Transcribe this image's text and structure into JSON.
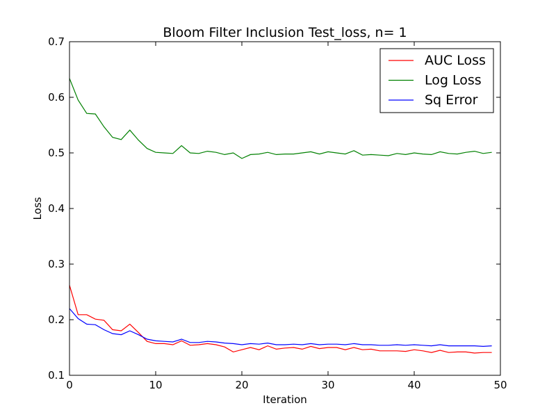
{
  "chart_data": {
    "type": "line",
    "title": "Bloom Filter Inclusion Test_loss, n= 1",
    "xlabel": "Iteration",
    "ylabel": "Loss",
    "xlim": [
      0,
      50
    ],
    "ylim": [
      0.1,
      0.7
    ],
    "xticks": [
      "0",
      "10",
      "20",
      "30",
      "40",
      "50"
    ],
    "yticks": [
      "0.1",
      "0.2",
      "0.3",
      "0.4",
      "0.5",
      "0.6",
      "0.7"
    ],
    "grid": false,
    "legend_position": "top-right",
    "x": [
      0,
      1,
      2,
      3,
      4,
      5,
      6,
      7,
      8,
      9,
      10,
      11,
      12,
      13,
      14,
      15,
      16,
      17,
      18,
      19,
      20,
      21,
      22,
      23,
      24,
      25,
      26,
      27,
      28,
      29,
      30,
      31,
      32,
      33,
      34,
      35,
      36,
      37,
      38,
      39,
      40,
      41,
      42,
      43,
      44,
      45,
      46,
      47,
      48,
      49
    ],
    "series": [
      {
        "name": "AUC Loss",
        "color": "#ff0000",
        "values": [
          0.262,
          0.209,
          0.209,
          0.201,
          0.199,
          0.182,
          0.18,
          0.192,
          0.177,
          0.161,
          0.157,
          0.157,
          0.155,
          0.162,
          0.154,
          0.155,
          0.157,
          0.155,
          0.151,
          0.142,
          0.146,
          0.15,
          0.146,
          0.153,
          0.147,
          0.149,
          0.15,
          0.147,
          0.152,
          0.148,
          0.15,
          0.15,
          0.146,
          0.15,
          0.146,
          0.147,
          0.144,
          0.144,
          0.144,
          0.143,
          0.146,
          0.144,
          0.141,
          0.145,
          0.141,
          0.142,
          0.142,
          0.14,
          0.141,
          0.141
        ]
      },
      {
        "name": "Log Loss",
        "color": "#008000",
        "values": [
          0.634,
          0.595,
          0.571,
          0.57,
          0.547,
          0.528,
          0.524,
          0.541,
          0.523,
          0.508,
          0.501,
          0.5,
          0.499,
          0.513,
          0.5,
          0.499,
          0.503,
          0.501,
          0.497,
          0.5,
          0.49,
          0.497,
          0.498,
          0.501,
          0.497,
          0.498,
          0.498,
          0.5,
          0.502,
          0.498,
          0.502,
          0.5,
          0.498,
          0.504,
          0.496,
          0.497,
          0.496,
          0.495,
          0.499,
          0.497,
          0.5,
          0.498,
          0.497,
          0.502,
          0.499,
          0.498,
          0.501,
          0.503,
          0.499,
          0.501
        ]
      },
      {
        "name": "Sq Error",
        "color": "#0000ff",
        "values": [
          0.22,
          0.202,
          0.192,
          0.191,
          0.182,
          0.175,
          0.173,
          0.18,
          0.173,
          0.165,
          0.162,
          0.161,
          0.16,
          0.165,
          0.159,
          0.159,
          0.161,
          0.16,
          0.158,
          0.157,
          0.155,
          0.157,
          0.156,
          0.158,
          0.155,
          0.155,
          0.156,
          0.155,
          0.157,
          0.155,
          0.156,
          0.156,
          0.155,
          0.157,
          0.155,
          0.155,
          0.154,
          0.154,
          0.155,
          0.154,
          0.155,
          0.154,
          0.153,
          0.155,
          0.153,
          0.153,
          0.153,
          0.153,
          0.152,
          0.153
        ]
      }
    ]
  }
}
